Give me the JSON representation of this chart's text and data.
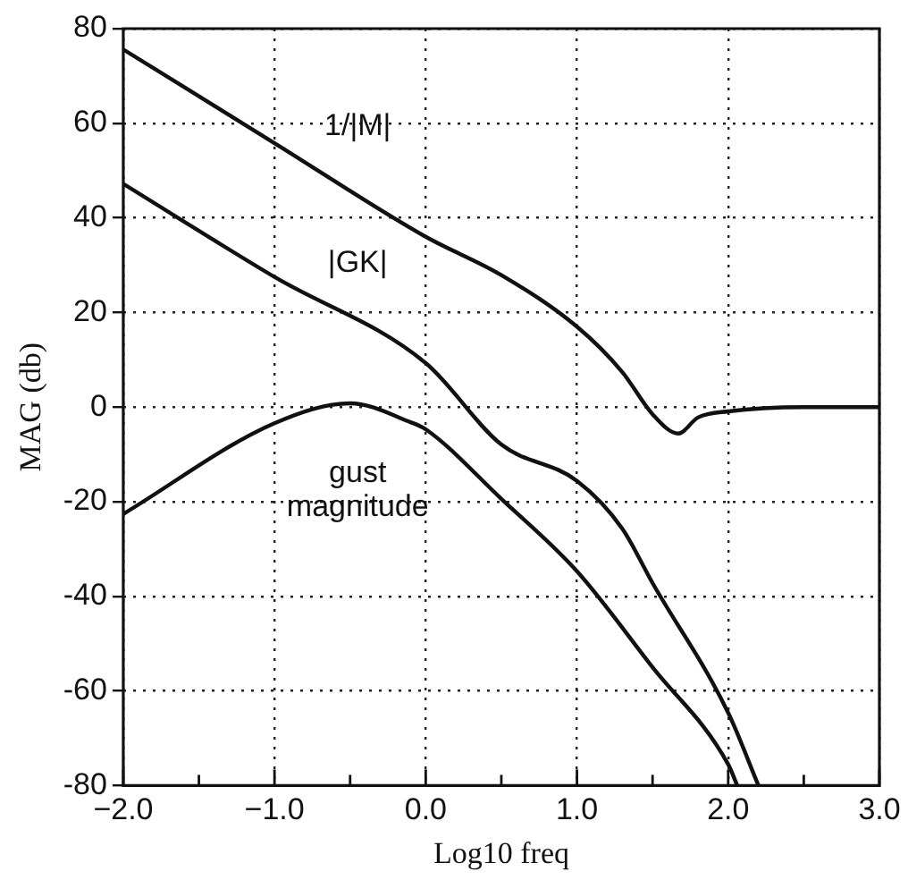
{
  "chart_data": {
    "type": "line",
    "xlabel": "Log10 freq",
    "ylabel": "MAG (db)",
    "xlim": [
      -2,
      3
    ],
    "ylim": [
      -80,
      80
    ],
    "xticks": [
      {
        "value": -2,
        "label": "−2.0"
      },
      {
        "value": -1.5,
        "label": null
      },
      {
        "value": -1,
        "label": "−1.0"
      },
      {
        "value": -0.5,
        "label": null
      },
      {
        "value": 0,
        "label": "0.0"
      },
      {
        "value": 0.5,
        "label": null
      },
      {
        "value": 1,
        "label": "1.0"
      },
      {
        "value": 1.5,
        "label": null
      },
      {
        "value": 2,
        "label": "2.0"
      },
      {
        "value": 2.5,
        "label": null
      },
      {
        "value": 3,
        "label": "3.0"
      }
    ],
    "yticks": [
      -80,
      -60,
      -40,
      -20,
      0,
      20,
      40,
      60,
      80
    ],
    "grid": true,
    "line_style": "solid",
    "marker": "none",
    "series": [
      {
        "color": "#111111",
        "x": [
          -2,
          -1,
          0,
          0.5,
          1,
          1.3,
          1.5,
          1.67,
          1.8,
          2,
          2.5,
          3
        ],
        "values": [
          75.6,
          55.8,
          36,
          27.9,
          17,
          7.4,
          -1.5,
          -5.6,
          -2.2,
          -0.9,
          0,
          0
        ]
      },
      {
        "color": "#111111",
        "x": [
          -2,
          -1,
          0,
          0.5,
          1,
          1.3,
          1.5,
          2,
          2.2
        ],
        "values": [
          47.2,
          27.5,
          9.3,
          -7.9,
          -15.6,
          -25.7,
          -37.2,
          -64.6,
          -80
        ]
      },
      {
        "color": "#111111",
        "x": [
          -2,
          -1,
          -0.5,
          -0.1,
          0,
          0.5,
          1,
          1.5,
          2,
          2.06
        ],
        "values": [
          -22.6,
          -3.4,
          0.8,
          -3.2,
          -4.7,
          -19.4,
          -34.7,
          -55,
          -75.5,
          -80
        ]
      }
    ],
    "annotations": [
      "1/|M|",
      "|GK|",
      "gust magnitude"
    ]
  }
}
